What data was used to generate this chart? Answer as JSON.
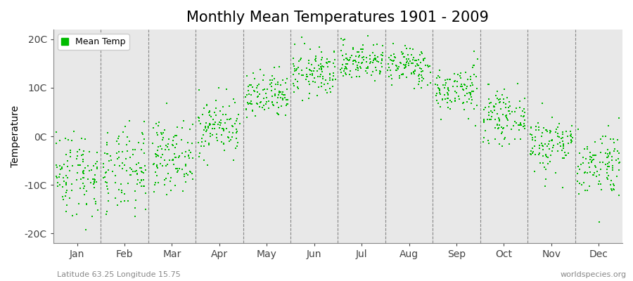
{
  "title": "Monthly Mean Temperatures 1901 - 2009",
  "ylabel": "Temperature",
  "ytick_labels": [
    "-20C",
    "-10C",
    "0C",
    "10C",
    "20C"
  ],
  "ytick_values": [
    -20,
    -10,
    0,
    10,
    20
  ],
  "ylim": [
    -22,
    22
  ],
  "xlim": [
    0,
    12
  ],
  "xtick_positions": [
    0.5,
    1.5,
    2.5,
    3.5,
    4.5,
    5.5,
    6.5,
    7.5,
    8.5,
    9.5,
    10.5,
    11.5
  ],
  "xtick_labels": [
    "Jan",
    "Feb",
    "Mar",
    "Apr",
    "May",
    "Jun",
    "Jul",
    "Aug",
    "Sep",
    "Oct",
    "Nov",
    "Dec"
  ],
  "vline_positions": [
    1,
    2,
    3,
    4,
    5,
    6,
    7,
    8,
    9,
    10,
    11
  ],
  "dot_color": "#00bb00",
  "dot_size": 3,
  "background_color": "#ffffff",
  "plot_bg_color": "#e8e8e8",
  "grid_color": "#888888",
  "title_fontsize": 15,
  "axis_label_fontsize": 10,
  "tick_fontsize": 10,
  "legend_label": "Mean Temp",
  "footer_left": "Latitude 63.25 Longitude 15.75",
  "footer_right": "worldspecies.org",
  "monthly_means": [
    -7.5,
    -7.5,
    -4.0,
    2.0,
    8.0,
    13.0,
    15.5,
    14.5,
    9.5,
    4.0,
    -1.5,
    -5.5
  ],
  "monthly_stds": [
    4.5,
    4.5,
    3.5,
    3.0,
    2.5,
    2.5,
    2.0,
    2.0,
    2.5,
    2.5,
    3.0,
    3.5
  ],
  "num_years": 109,
  "seed": 42
}
